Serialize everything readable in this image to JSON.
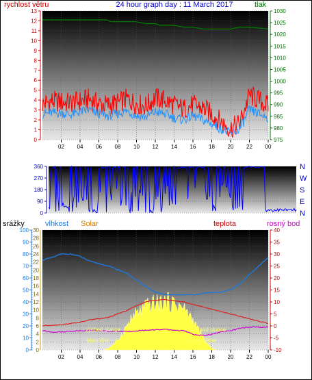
{
  "header": {
    "left_label": "rychlost větru",
    "title": "24 hour graph day : 11 March 2017",
    "right_label": "tlak"
  },
  "legend2": {
    "srazky": "srážky",
    "vlhkost": "vlhkost",
    "solar": "Solar",
    "teplota": "teplota",
    "rosny_bod": "rosný bod"
  },
  "colors": {
    "wind_gust": "#ff0000",
    "wind_avg": "#1e90ff",
    "pressure": "#008000",
    "direction": "#0000ff",
    "humidity": "#1e78dc",
    "temperature": "#e02020",
    "dewpoint": "#cc00cc",
    "solar": "#ffff44",
    "rain_axis": "#1e78dc",
    "temp_axis": "#c00000"
  },
  "chart_data": [
    {
      "type": "line",
      "name": "wind",
      "x_ticks": [
        "02",
        "04",
        "06",
        "08",
        "10",
        "12",
        "14",
        "16",
        "18",
        "20",
        "22",
        "00"
      ],
      "left_axis": {
        "label": "rychlost větru",
        "ylim": [
          0,
          13
        ],
        "ticks": [
          0,
          1,
          2,
          3,
          4,
          5,
          6,
          7,
          8,
          9,
          10,
          11,
          12,
          13
        ]
      },
      "right_axis": {
        "label": "tlak",
        "ylim": [
          975,
          1030
        ],
        "ticks": [
          975,
          980,
          985,
          990,
          995,
          1000,
          1005,
          1010,
          1015,
          1020,
          1025,
          1030
        ]
      },
      "hours": [
        0,
        1,
        2,
        3,
        4,
        5,
        6,
        7,
        8,
        9,
        10,
        11,
        12,
        13,
        14,
        15,
        16,
        17,
        18,
        19,
        20,
        21,
        22,
        23,
        24
      ],
      "series": [
        {
          "role": "gust",
          "values": [
            3.6,
            3.9,
            3.8,
            3.7,
            3.9,
            4.1,
            3.6,
            3.5,
            3.7,
            4.1,
            3.6,
            3.4,
            4.2,
            4.0,
            3.5,
            3.1,
            3.5,
            3.2,
            2.6,
            1.8,
            1.1,
            1.7,
            4.5,
            4.0,
            3.4
          ]
        },
        {
          "role": "average",
          "values": [
            2.6,
            2.7,
            2.7,
            2.5,
            2.8,
            3.0,
            2.6,
            2.4,
            2.6,
            2.9,
            2.4,
            2.3,
            2.8,
            2.6,
            2.2,
            2.0,
            2.4,
            2.0,
            1.6,
            1.1,
            0.6,
            1.1,
            3.0,
            2.6,
            2.2
          ]
        },
        {
          "role": "pressure",
          "x": [
            0,
            2,
            4,
            5,
            6,
            6.8,
            7.3,
            8,
            9,
            9.9,
            11,
            12,
            12.5,
            14,
            15,
            16,
            17,
            18,
            19,
            20,
            21,
            22,
            24
          ],
          "values": [
            1026.2,
            1026.2,
            1026.2,
            1026.2,
            1026.2,
            1026.2,
            1025.4,
            1025.4,
            1025.4,
            1025.4,
            1024.6,
            1024.6,
            1023.9,
            1023.9,
            1023.1,
            1023.1,
            1022.3,
            1022.3,
            1022.3,
            1022.3,
            1023.1,
            1023.1,
            1022.3
          ]
        }
      ]
    },
    {
      "type": "line",
      "name": "wind_direction",
      "x_ticks": [],
      "left_axis": {
        "ylim": [
          0,
          360
        ],
        "ticks": [
          0,
          90,
          180,
          270,
          360
        ]
      },
      "right_axis": {
        "ticks": [
          "N",
          "W",
          "S",
          "E",
          "N"
        ]
      },
      "hours": [
        0,
        1,
        2,
        3,
        4,
        5,
        6,
        7,
        8,
        9,
        10,
        11,
        12,
        13,
        14,
        15,
        16,
        17,
        18,
        19,
        20,
        21,
        22,
        23,
        24
      ],
      "series": [
        {
          "role": "direction",
          "values": [
            340,
            120,
            40,
            320,
            20,
            200,
            350,
            90,
            330,
            150,
            10,
            340,
            100,
            20,
            200,
            330,
            60,
            340,
            10,
            350,
            340,
            40,
            20,
            15,
            10
          ]
        }
      ]
    },
    {
      "type": "line",
      "name": "temperature_humidity_solar",
      "x_ticks": [
        "02",
        "04",
        "06",
        "08",
        "10",
        "12",
        "14",
        "16",
        "18",
        "20",
        "22",
        "00"
      ],
      "rain_axis": {
        "label": "srážky",
        "ylim": [
          0,
          100
        ],
        "ticks": [
          0,
          10,
          20,
          30,
          40,
          50,
          60,
          70,
          80,
          90,
          100
        ]
      },
      "humidity_axis": {
        "label": "vlhkost",
        "ylim": [
          0,
          30
        ],
        "ticks": [
          0,
          2,
          4,
          6,
          8,
          10,
          12,
          14,
          16,
          18,
          20,
          22,
          24,
          26,
          28,
          30
        ]
      },
      "temp_axis": {
        "label": "teplota",
        "ylim": [
          -10,
          40
        ],
        "ticks": [
          -10,
          -5,
          0,
          5,
          10,
          15,
          20,
          25,
          30,
          35,
          40
        ]
      },
      "hours": [
        0,
        1,
        2,
        3,
        4,
        5,
        6,
        7,
        8,
        9,
        10,
        11,
        12,
        13,
        14,
        15,
        16,
        17,
        18,
        19,
        20,
        21,
        22,
        23,
        24
      ],
      "series": [
        {
          "role": "humidity",
          "values": [
            75,
            77,
            80,
            80,
            78,
            74,
            72,
            70,
            67,
            64,
            58,
            53,
            48,
            46,
            46,
            46,
            46,
            47,
            48,
            48,
            50,
            55,
            63,
            70,
            77
          ]
        },
        {
          "role": "temperature",
          "values": [
            0.1,
            0.3,
            0.5,
            1,
            1.5,
            2.5,
            3,
            3.5,
            5,
            6.5,
            8.5,
            10,
            10.8,
            11,
            10.5,
            10,
            9,
            8,
            7,
            6,
            5,
            4,
            3,
            2,
            1
          ]
        },
        {
          "role": "dewpoint",
          "values": [
            -2,
            -2.5,
            -2.5,
            -2.2,
            -2,
            -1.8,
            -2,
            -2.3,
            -2.2,
            -2.4,
            -2,
            -1.8,
            -1.6,
            -1.5,
            -1.8,
            -2,
            -3.5,
            -4,
            -3.5,
            -2.5,
            -2,
            -1,
            -0.5,
            -0.5,
            -0.5
          ]
        },
        {
          "role": "solar",
          "x": [
            6.5,
            7,
            7.5,
            8,
            8.5,
            9,
            9.5,
            10,
            10.5,
            11,
            11.5,
            12,
            12.5,
            13,
            13.5,
            14,
            14.5,
            15,
            15.5,
            16,
            16.5,
            17,
            17.5,
            18,
            18.5
          ],
          "values": [
            0,
            0.5,
            1.5,
            3,
            5,
            7.5,
            9.5,
            11,
            12,
            13,
            13.7,
            14,
            14.3,
            14.5,
            14.4,
            14,
            13.5,
            12.5,
            11,
            9,
            6.5,
            4,
            2,
            0.5,
            0
          ]
        }
      ],
      "annotations": {
        "sunrise": "východ slunce",
        "sunset": "západ slunce",
        "moonset": "MoonSet",
        "moonrise": "Moon Rise"
      }
    }
  ]
}
